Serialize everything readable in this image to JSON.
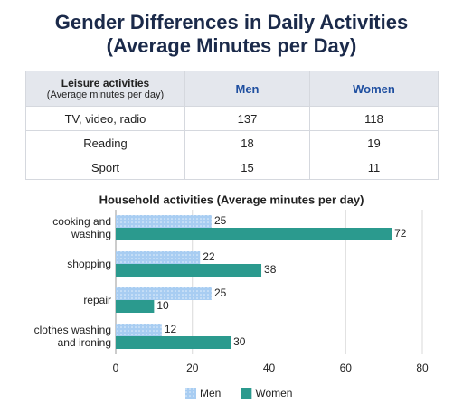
{
  "title": [
    "Gender Differences in Daily Activities",
    "(Average Minutes per Day)"
  ],
  "table": {
    "header": [
      "Leisure activities",
      "Men",
      "Women"
    ],
    "header_note": "(Average minutes per day)",
    "rows": [
      [
        "TV, video, radio",
        137,
        118
      ],
      [
        "Reading",
        18,
        19
      ],
      [
        "Sport",
        15,
        11
      ]
    ]
  },
  "chart_data": {
    "type": "bar",
    "orientation": "horizontal",
    "title": "Household activities (Average minutes per day)",
    "categories": [
      "cooking and washing",
      "shopping",
      "repair",
      "clothes washing and ironing"
    ],
    "series": [
      {
        "name": "Men",
        "color": "#a8cdf2",
        "values": [
          25,
          22,
          25,
          12
        ]
      },
      {
        "name": "Women",
        "color": "#2b9a8e",
        "values": [
          72,
          38,
          10,
          30
        ]
      }
    ],
    "xlim": [
      0,
      80
    ],
    "xticks": [
      0,
      20,
      40,
      60,
      80
    ],
    "grid": true,
    "legend": "bottom"
  }
}
